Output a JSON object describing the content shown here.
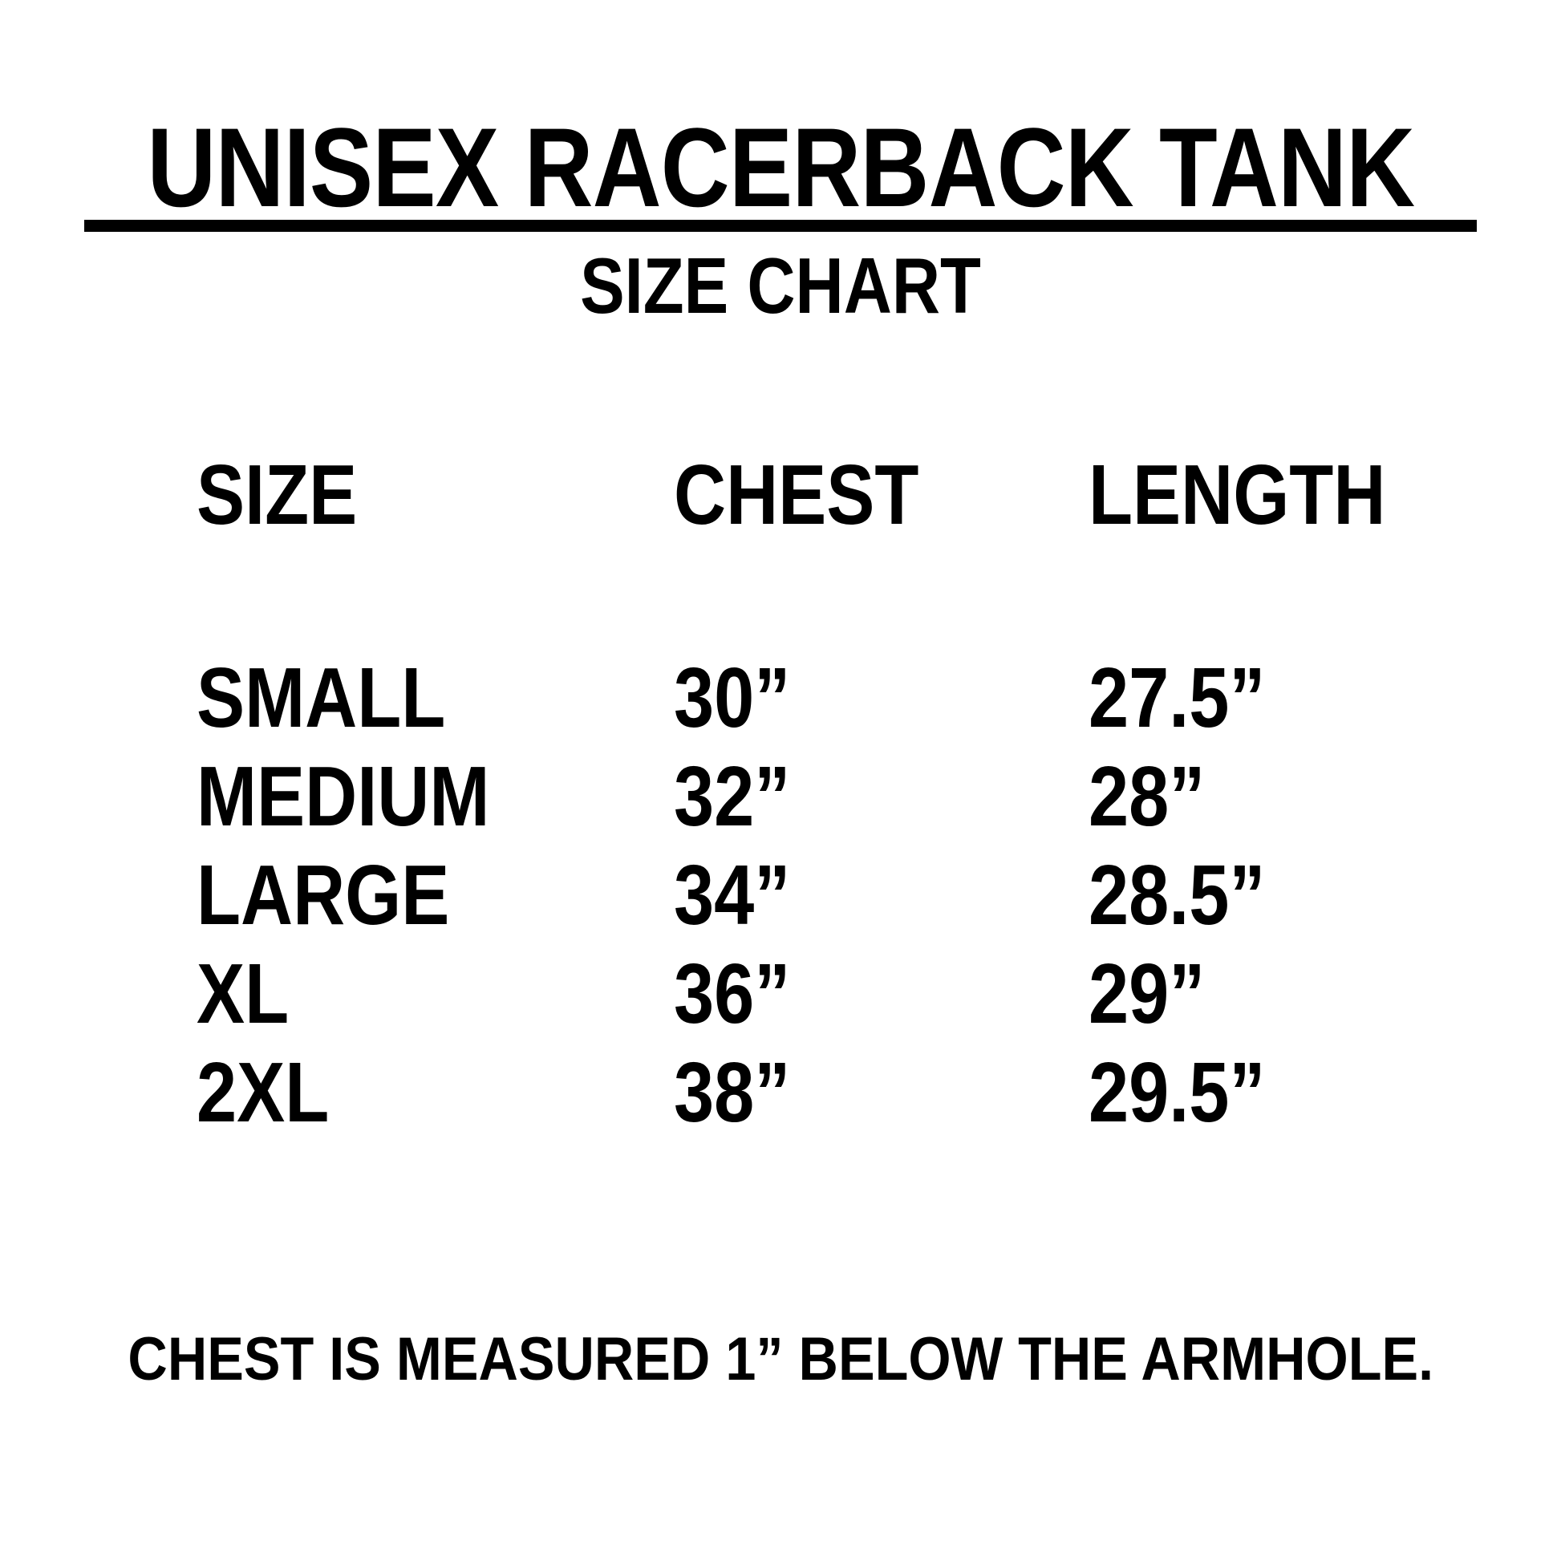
{
  "chart_data": {
    "type": "table",
    "title": "UNISEX RACERBACK TANK",
    "subtitle": "SIZE CHART",
    "columns": [
      "SIZE",
      "CHEST",
      "LENGTH"
    ],
    "rows": [
      [
        "SMALL",
        "30”",
        "27.5”"
      ],
      [
        "MEDIUM",
        "32”",
        "28”"
      ],
      [
        "LARGE",
        "34”",
        "28.5”"
      ],
      [
        "XL",
        "36”",
        "29”"
      ],
      [
        "2XL",
        "38”",
        "29.5”"
      ]
    ],
    "note": "CHEST IS MEASURED 1” BELOW THE ARMHOLE.",
    "layout": {
      "legend": "none",
      "grid": "off",
      "borders": "none",
      "title_underline": true,
      "column_alignment": "left"
    }
  },
  "colors": {
    "text": "#000000",
    "background": "#ffffff",
    "rule": "#000000"
  }
}
